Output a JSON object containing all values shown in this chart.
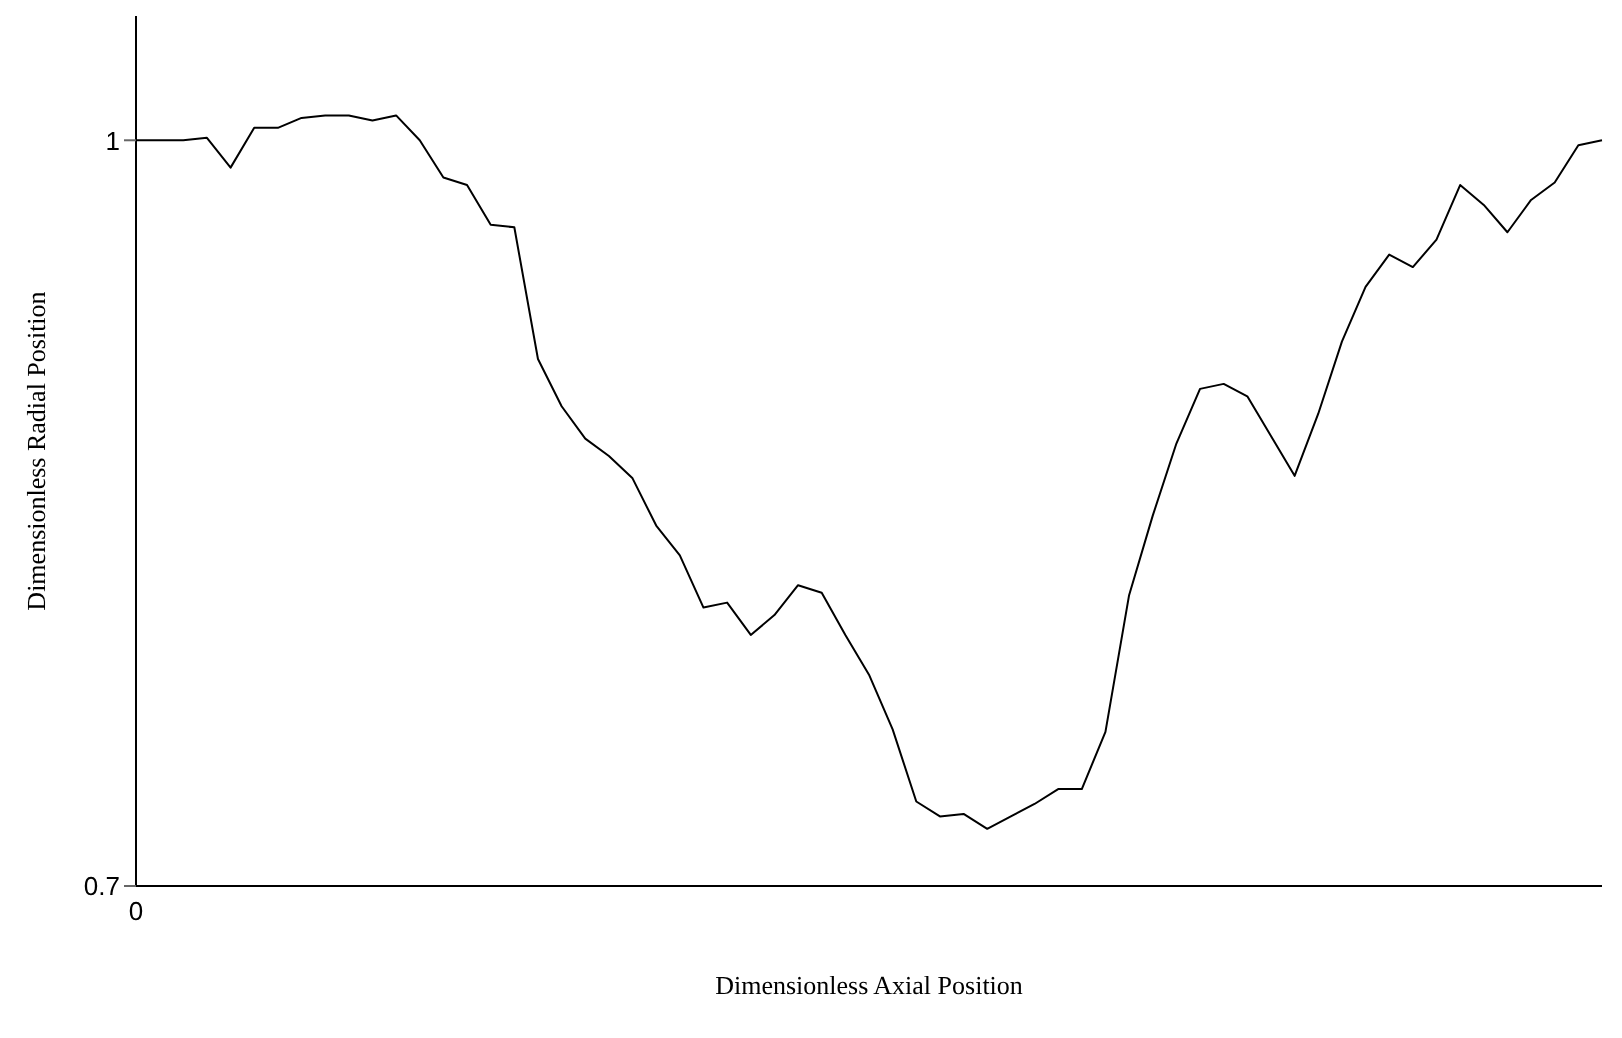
{
  "chart_data": {
    "type": "line",
    "xlabel": "Dimensionless Axial Position",
    "ylabel": "Dimensionless Radial Position",
    "categories": [
      "0",
      null,
      null,
      null,
      null,
      null,
      null,
      null,
      null,
      null,
      null,
      null,
      null,
      null,
      null,
      null,
      null,
      null,
      null,
      null,
      null,
      null,
      null,
      null,
      null,
      null,
      null,
      null,
      null,
      null,
      null,
      null,
      null,
      null,
      null,
      null,
      null,
      null,
      null,
      null,
      null,
      null,
      null,
      null,
      null,
      null,
      null,
      null,
      null,
      null,
      null,
      null,
      null,
      null,
      null,
      null,
      null,
      null,
      null,
      null,
      null,
      null,
      null
    ],
    "series": [
      {
        "color": "#000000",
        "values": [
          1.0,
          1.0,
          1.0,
          1.001,
          0.989,
          1.005,
          1.005,
          1.009,
          1.01,
          1.01,
          1.008,
          1.01,
          1.0,
          0.985,
          0.982,
          0.966,
          0.965,
          0.912,
          0.893,
          0.88,
          0.873,
          0.864,
          0.845,
          0.833,
          0.812,
          0.814,
          0.801,
          0.809,
          0.821,
          0.818,
          0.801,
          0.785,
          0.763,
          0.734,
          0.728,
          0.729,
          0.723,
          0.728,
          0.733,
          0.739,
          0.739,
          0.762,
          0.817,
          0.849,
          0.878,
          0.9,
          0.902,
          0.897,
          0.881,
          0.865,
          0.89,
          0.919,
          0.941,
          0.954,
          0.949,
          0.96,
          0.982,
          0.974,
          0.963,
          0.976,
          0.983,
          0.998,
          1.0
        ]
      }
    ],
    "ylim": [
      0.7,
      1.05
    ],
    "yticks": [
      0.7,
      1
    ],
    "grid": false,
    "legend": false,
    "marker": "none",
    "line_style": "solid"
  }
}
